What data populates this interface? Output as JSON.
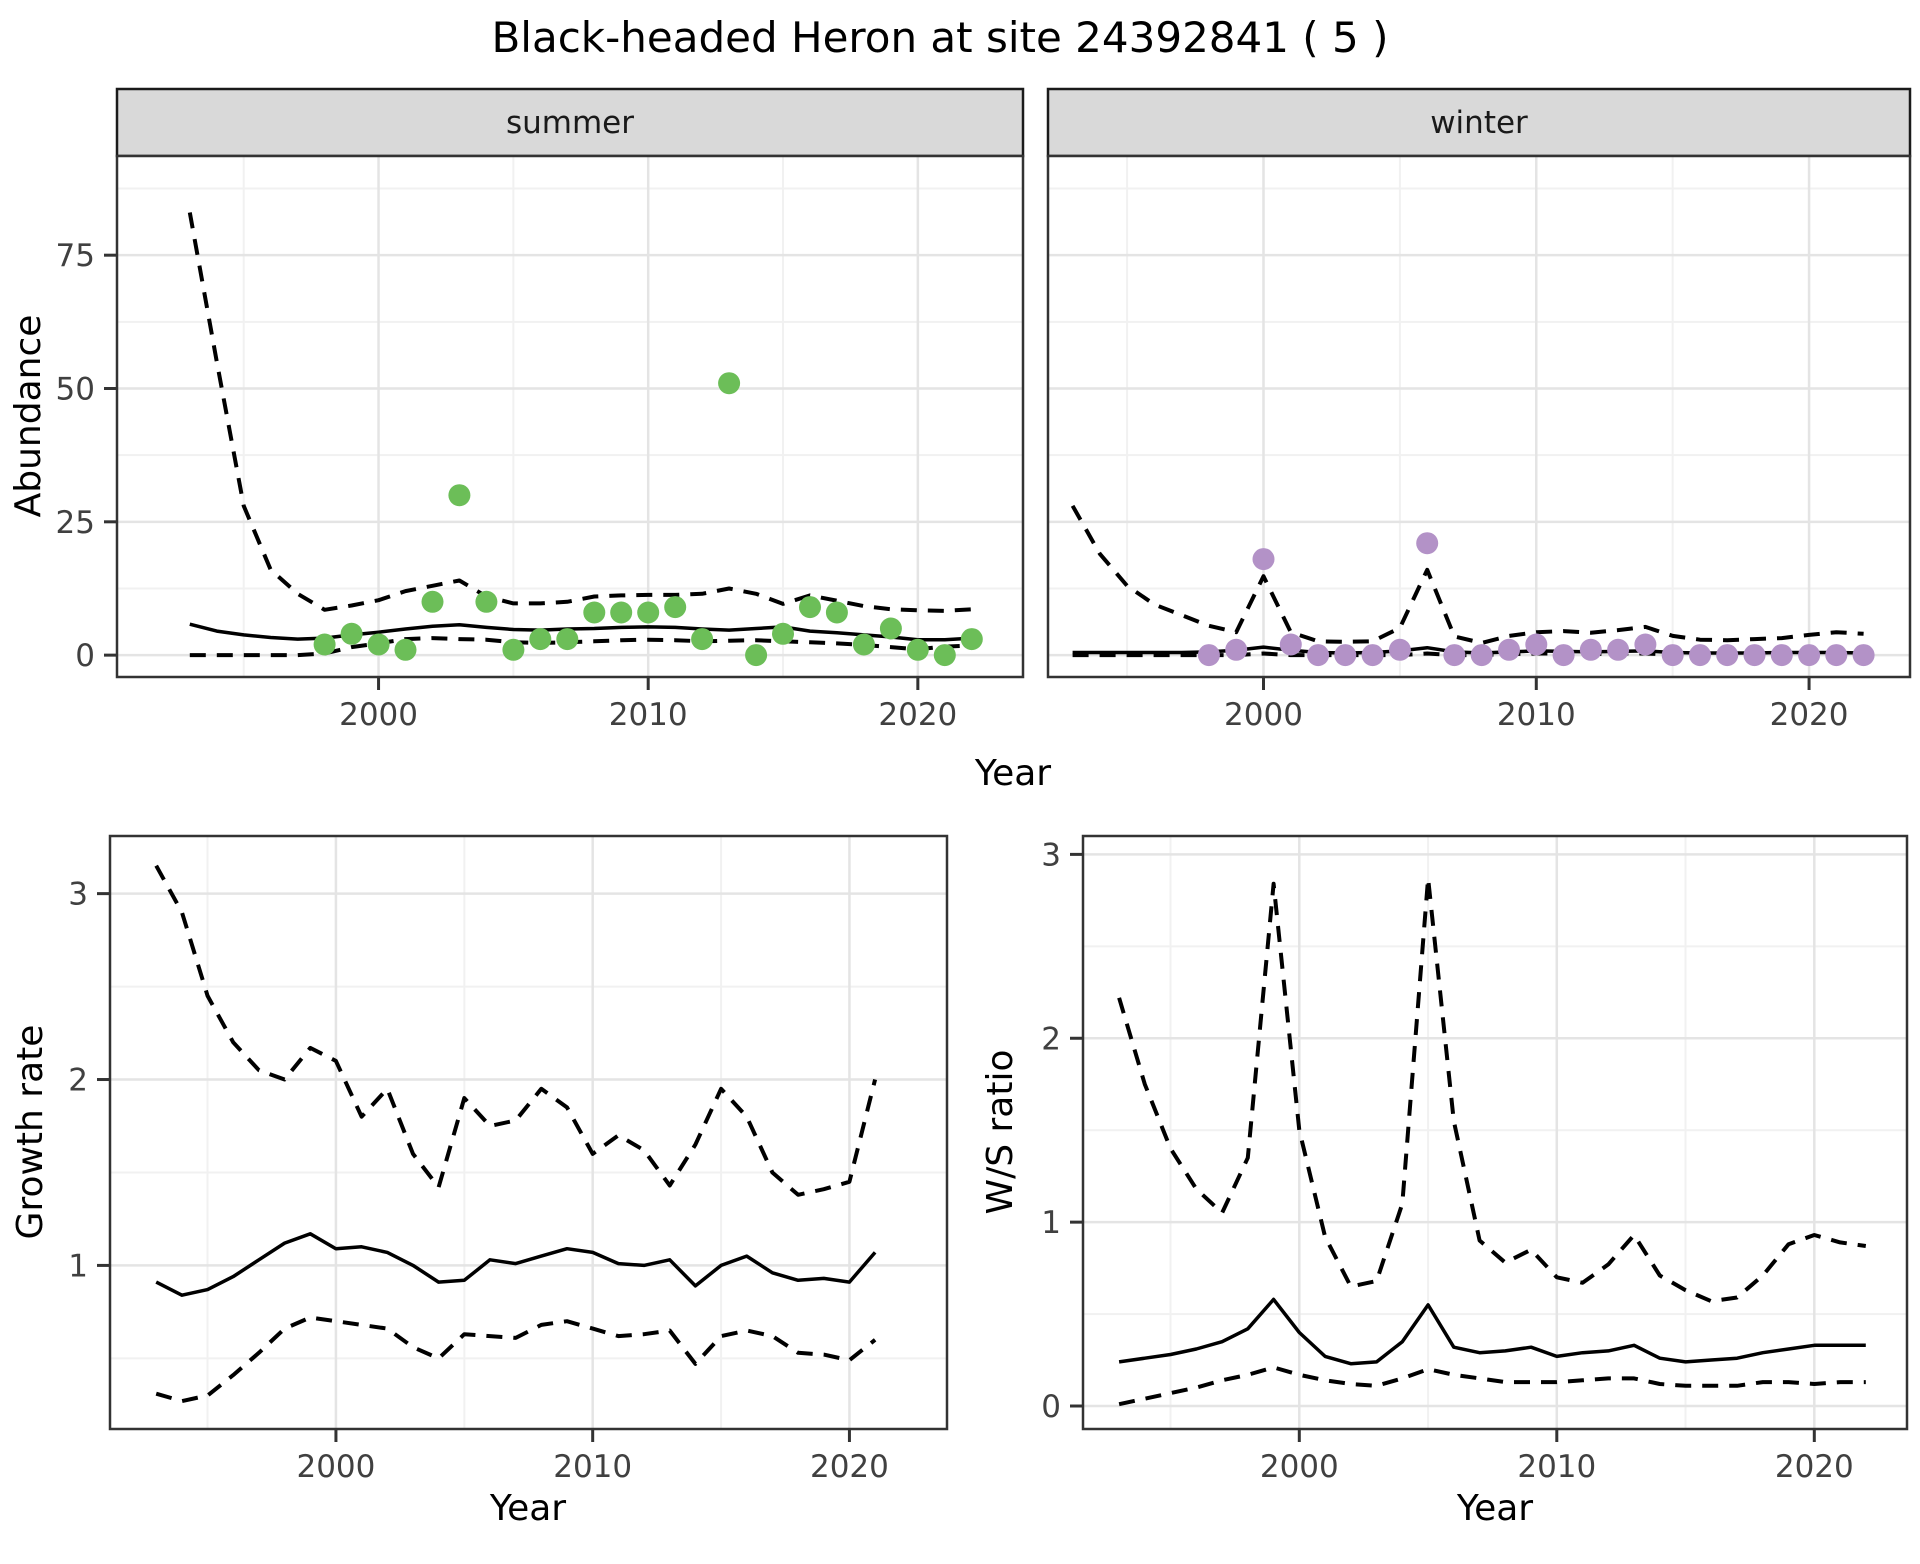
{
  "title": "Black-headed Heron at site 24392841 ( 5 )",
  "axis_labels": {
    "x": "Year",
    "y_abundance": "Abundance",
    "y_growth": "Growth rate",
    "y_ws": "W/S ratio"
  },
  "facets": {
    "summer": "summer",
    "winter": "winter"
  },
  "colors": {
    "summer_point": "#6cbe58",
    "winter_point": "#b392c7",
    "line": "#000000",
    "strip_bg": "#d9d9d9",
    "strip_border": "#1a1a1a",
    "panel_border": "#333333",
    "grid_major": "#e4e4e4",
    "grid_minor": "#f1f1f1",
    "tick_text": "#404040"
  },
  "chart_data": [
    {
      "id": "summer",
      "type": "line",
      "facet_label": "summer",
      "xlabel": "Year",
      "ylabel": "Abundance",
      "xlim": [
        1990.3,
        2023.9
      ],
      "ylim": [
        -4.1,
        93.6
      ],
      "xticks": {
        "values": [
          2000,
          2010,
          2020
        ],
        "labels": [
          "2000",
          "2010",
          "2020"
        ]
      },
      "yticks": {
        "values": [
          0,
          25,
          50,
          75
        ],
        "labels": [
          "0",
          "25",
          "50",
          "75"
        ]
      },
      "x_minor": [
        1995,
        2005,
        2015
      ],
      "y_minor": [
        12.5,
        37.5,
        62.5,
        87.5
      ],
      "series": [
        {
          "name": "upper_ci",
          "dashed": true,
          "x": [
            1993,
            1994,
            1995,
            1996,
            1997,
            1998,
            1999,
            2000,
            2001,
            2002,
            2003,
            2004,
            2005,
            2006,
            2007,
            2008,
            2009,
            2010,
            2011,
            2012,
            2013,
            2014,
            2015,
            2016,
            2017,
            2018,
            2019,
            2020,
            2021,
            2022
          ],
          "y": [
            83,
            55,
            28,
            16,
            11.5,
            8.5,
            9.3,
            10.3,
            12,
            13,
            14,
            11,
            9.7,
            9.7,
            10,
            11,
            11.2,
            11.3,
            11.3,
            11.5,
            12.5,
            11.5,
            9.6,
            11.2,
            10.2,
            9.2,
            8.6,
            8.4,
            8.3,
            8.6
          ]
        },
        {
          "name": "lower_ci",
          "dashed": true,
          "x": [
            1993,
            1994,
            1995,
            1996,
            1997,
            1998,
            1999,
            2000,
            2001,
            2002,
            2003,
            2004,
            2005,
            2006,
            2007,
            2008,
            2009,
            2010,
            2011,
            2012,
            2013,
            2014,
            2015,
            2016,
            2017,
            2018,
            2019,
            2020,
            2021,
            2022
          ],
          "y": [
            0,
            0,
            0,
            0,
            0,
            0.3,
            1.5,
            2.2,
            3.0,
            3.2,
            3.0,
            2.9,
            2.4,
            2.3,
            2.4,
            2.6,
            2.8,
            2.9,
            2.8,
            2.6,
            2.7,
            2.8,
            2.6,
            2.4,
            2.2,
            1.9,
            1.5,
            1.1,
            1.6,
            1.8
          ]
        },
        {
          "name": "median",
          "dashed": false,
          "x": [
            1993,
            1994,
            1995,
            1996,
            1997,
            1998,
            1999,
            2000,
            2001,
            2002,
            2003,
            2004,
            2005,
            2006,
            2007,
            2008,
            2009,
            2010,
            2011,
            2012,
            2013,
            2014,
            2015,
            2016,
            2017,
            2018,
            2019,
            2020,
            2021,
            2022
          ],
          "y": [
            5.8,
            4.5,
            3.8,
            3.3,
            3.0,
            3.2,
            3.8,
            4.3,
            4.9,
            5.4,
            5.7,
            5.2,
            4.8,
            4.7,
            4.9,
            5.0,
            5.2,
            5.3,
            5.2,
            4.9,
            4.7,
            5.0,
            5.3,
            4.5,
            4.2,
            3.8,
            3.4,
            2.9,
            2.9,
            3.2
          ]
        }
      ],
      "points": {
        "name": "summer-observations",
        "color": "#6cbe58",
        "x": [
          1998,
          1999,
          2000,
          2001,
          2002,
          2003,
          2004,
          2005,
          2006,
          2007,
          2008,
          2009,
          2010,
          2011,
          2012,
          2013,
          2014,
          2015,
          2016,
          2017,
          2018,
          2019,
          2020,
          2021,
          2022
        ],
        "y": [
          2,
          4,
          2,
          1,
          10,
          30,
          10,
          1,
          3,
          3,
          8,
          8,
          8,
          9,
          3,
          51,
          0,
          4,
          9,
          8,
          2,
          5,
          1,
          0,
          3
        ]
      }
    },
    {
      "id": "winter",
      "type": "line",
      "facet_label": "winter",
      "xlabel": "Year",
      "ylabel": "Abundance",
      "xlim": [
        1992.1,
        2023.7
      ],
      "ylim": [
        -4.1,
        93.6
      ],
      "xticks": {
        "values": [
          2000,
          2010,
          2020
        ],
        "labels": [
          "2000",
          "2010",
          "2020"
        ]
      },
      "yticks": {
        "values": [],
        "labels": []
      },
      "x_minor": [
        1995,
        2005,
        2015
      ],
      "y_minor": [
        12.5,
        37.5,
        62.5,
        87.5
      ],
      "y_major_grid": [
        0,
        25,
        50,
        75
      ],
      "series": [
        {
          "name": "upper_ci",
          "dashed": true,
          "x": [
            1993,
            1994,
            1995,
            1996,
            1997,
            1998,
            1999,
            2000,
            2001,
            2002,
            2003,
            2004,
            2005,
            2006,
            2007,
            2008,
            2009,
            2010,
            2011,
            2012,
            2013,
            2014,
            2015,
            2016,
            2017,
            2018,
            2019,
            2020,
            2021,
            2022
          ],
          "y": [
            28,
            19,
            13,
            9.5,
            7.5,
            5.5,
            4.3,
            14.8,
            4.3,
            2.6,
            2.5,
            2.6,
            5.1,
            16,
            3.5,
            2.3,
            3.6,
            4.3,
            4.5,
            4.2,
            4.7,
            5.3,
            3.6,
            2.9,
            2.8,
            3.0,
            3.2,
            3.8,
            4.3,
            4.0
          ]
        },
        {
          "name": "lower_ci",
          "dashed": true,
          "x": [
            1993,
            1994,
            1995,
            1996,
            1997,
            1998,
            1999,
            2000,
            2001,
            2002,
            2003,
            2004,
            2005,
            2006,
            2007,
            2008,
            2009,
            2010,
            2011,
            2012,
            2013,
            2014,
            2015,
            2016,
            2017,
            2018,
            2019,
            2020,
            2021,
            2022
          ],
          "y": [
            0,
            0,
            0,
            0,
            0,
            0,
            0,
            0.3,
            0,
            0,
            0,
            0,
            0,
            0.3,
            0,
            0,
            0.2,
            0.3,
            0.3,
            0.2,
            0.3,
            0.3,
            0.1,
            0,
            0,
            0,
            0,
            0.1,
            0.1,
            0.1
          ]
        },
        {
          "name": "median",
          "dashed": false,
          "x": [
            1993,
            1994,
            1995,
            1996,
            1997,
            1998,
            1999,
            2000,
            2001,
            2002,
            2003,
            2004,
            2005,
            2006,
            2007,
            2008,
            2009,
            2010,
            2011,
            2012,
            2013,
            2014,
            2015,
            2016,
            2017,
            2018,
            2019,
            2020,
            2021,
            2022
          ],
          "y": [
            0.5,
            0.5,
            0.5,
            0.5,
            0.5,
            0.6,
            0.9,
            1.5,
            0.9,
            0.5,
            0.4,
            0.5,
            0.8,
            1.4,
            0.6,
            0.4,
            0.6,
            0.8,
            0.7,
            0.6,
            0.7,
            0.8,
            0.5,
            0.4,
            0.4,
            0.4,
            0.5,
            0.5,
            0.5,
            0.4
          ]
        }
      ],
      "points": {
        "name": "winter-observations",
        "color": "#b392c7",
        "x": [
          1998,
          1999,
          2000,
          2001,
          2002,
          2003,
          2004,
          2005,
          2006,
          2007,
          2008,
          2009,
          2010,
          2011,
          2012,
          2013,
          2014,
          2015,
          2016,
          2017,
          2018,
          2019,
          2020,
          2021,
          2022
        ],
        "y": [
          0,
          1,
          18,
          2,
          0,
          0,
          0,
          1,
          21,
          0,
          0,
          1,
          2,
          0,
          1,
          1,
          2,
          0,
          0,
          0,
          0,
          0,
          0,
          0,
          0
        ]
      }
    },
    {
      "id": "growth",
      "type": "line",
      "facet_label": "",
      "xlabel": "Year",
      "ylabel": "Growth rate",
      "xlim": [
        1991.2,
        2023.8
      ],
      "ylim": [
        0.12,
        3.31
      ],
      "xticks": {
        "values": [
          2000,
          2010,
          2020
        ],
        "labels": [
          "2000",
          "2010",
          "2020"
        ]
      },
      "yticks": {
        "values": [
          1,
          2,
          3
        ],
        "labels": [
          "1",
          "2",
          "3"
        ]
      },
      "x_minor": [
        1995,
        2005,
        2015
      ],
      "y_minor": [
        0.5,
        1.5,
        2.5
      ],
      "series": [
        {
          "name": "upper_ci",
          "dashed": true,
          "x": [
            1993,
            1994,
            1995,
            1996,
            1997,
            1998,
            1999,
            2000,
            2001,
            2002,
            2003,
            2004,
            2005,
            2006,
            2007,
            2008,
            2009,
            2010,
            2011,
            2012,
            2013,
            2014,
            2015,
            2016,
            2017,
            2018,
            2019,
            2020,
            2021
          ],
          "y": [
            3.15,
            2.9,
            2.45,
            2.2,
            2.05,
            2.0,
            2.17,
            2.1,
            1.8,
            1.95,
            1.6,
            1.42,
            1.9,
            1.75,
            1.78,
            1.95,
            1.85,
            1.6,
            1.7,
            1.62,
            1.43,
            1.65,
            1.95,
            1.8,
            1.5,
            1.38,
            1.41,
            1.45,
            2.0
          ]
        },
        {
          "name": "lower_ci",
          "dashed": true,
          "x": [
            1993,
            1994,
            1995,
            1996,
            1997,
            1998,
            1999,
            2000,
            2001,
            2002,
            2003,
            2004,
            2005,
            2006,
            2007,
            2008,
            2009,
            2010,
            2011,
            2012,
            2013,
            2014,
            2015,
            2016,
            2017,
            2018,
            2019,
            2020,
            2021
          ],
          "y": [
            0.31,
            0.27,
            0.3,
            0.41,
            0.53,
            0.66,
            0.72,
            0.7,
            0.68,
            0.66,
            0.56,
            0.5,
            0.63,
            0.62,
            0.61,
            0.68,
            0.7,
            0.66,
            0.62,
            0.63,
            0.65,
            0.47,
            0.62,
            0.65,
            0.62,
            0.53,
            0.52,
            0.49,
            0.6
          ]
        },
        {
          "name": "median",
          "dashed": false,
          "x": [
            1993,
            1994,
            1995,
            1996,
            1997,
            1998,
            1999,
            2000,
            2001,
            2002,
            2003,
            2004,
            2005,
            2006,
            2007,
            2008,
            2009,
            2010,
            2011,
            2012,
            2013,
            2014,
            2015,
            2016,
            2017,
            2018,
            2019,
            2020,
            2021
          ],
          "y": [
            0.91,
            0.84,
            0.87,
            0.94,
            1.03,
            1.12,
            1.17,
            1.09,
            1.1,
            1.07,
            1.0,
            0.91,
            0.92,
            1.03,
            1.01,
            1.05,
            1.09,
            1.07,
            1.01,
            1.0,
            1.03,
            0.89,
            1.0,
            1.05,
            0.96,
            0.92,
            0.93,
            0.91,
            1.07
          ]
        }
      ],
      "points": null
    },
    {
      "id": "ws",
      "type": "line",
      "facet_label": "",
      "xlabel": "Year",
      "ylabel": "W/S ratio",
      "xlim": [
        1991.6,
        2023.6
      ],
      "ylim": [
        -0.125,
        3.1
      ],
      "xticks": {
        "values": [
          2000,
          2010,
          2020
        ],
        "labels": [
          "2000",
          "2010",
          "2020"
        ]
      },
      "yticks": {
        "values": [
          0,
          1,
          2,
          3
        ],
        "labels": [
          "0",
          "1",
          "2",
          "3"
        ]
      },
      "x_minor": [
        1995,
        2005,
        2015
      ],
      "y_minor": [
        0.5,
        1.5,
        2.5
      ],
      "series": [
        {
          "name": "upper_ci",
          "dashed": true,
          "x": [
            1993,
            1994,
            1995,
            1996,
            1997,
            1998,
            1999,
            2000,
            2001,
            2002,
            2003,
            2004,
            2005,
            2006,
            2007,
            2008,
            2009,
            2010,
            2011,
            2012,
            2013,
            2014,
            2015,
            2016,
            2017,
            2018,
            2019,
            2020,
            2021,
            2022
          ],
          "y": [
            2.22,
            1.75,
            1.4,
            1.18,
            1.05,
            1.35,
            2.84,
            1.5,
            0.92,
            0.65,
            0.68,
            1.1,
            2.87,
            1.55,
            0.9,
            0.78,
            0.85,
            0.7,
            0.67,
            0.77,
            0.93,
            0.71,
            0.63,
            0.57,
            0.59,
            0.71,
            0.88,
            0.93,
            0.89,
            0.87
          ]
        },
        {
          "name": "lower_ci",
          "dashed": true,
          "x": [
            1993,
            1994,
            1995,
            1996,
            1997,
            1998,
            1999,
            2000,
            2001,
            2002,
            2003,
            2004,
            2005,
            2006,
            2007,
            2008,
            2009,
            2010,
            2011,
            2012,
            2013,
            2014,
            2015,
            2016,
            2017,
            2018,
            2019,
            2020,
            2021,
            2022
          ],
          "y": [
            0.01,
            0.04,
            0.07,
            0.1,
            0.14,
            0.17,
            0.21,
            0.17,
            0.14,
            0.12,
            0.11,
            0.15,
            0.2,
            0.17,
            0.15,
            0.13,
            0.13,
            0.13,
            0.14,
            0.15,
            0.15,
            0.12,
            0.11,
            0.11,
            0.11,
            0.13,
            0.13,
            0.12,
            0.13,
            0.13
          ]
        },
        {
          "name": "median",
          "dashed": false,
          "x": [
            1993,
            1994,
            1995,
            1996,
            1997,
            1998,
            1999,
            2000,
            2001,
            2002,
            2003,
            2004,
            2005,
            2006,
            2007,
            2008,
            2009,
            2010,
            2011,
            2012,
            2013,
            2014,
            2015,
            2016,
            2017,
            2018,
            2019,
            2020,
            2021,
            2022
          ],
          "y": [
            0.24,
            0.26,
            0.28,
            0.31,
            0.35,
            0.42,
            0.58,
            0.4,
            0.27,
            0.23,
            0.24,
            0.35,
            0.55,
            0.32,
            0.29,
            0.3,
            0.32,
            0.27,
            0.29,
            0.3,
            0.33,
            0.26,
            0.24,
            0.25,
            0.26,
            0.29,
            0.31,
            0.33,
            0.33,
            0.33
          ]
        }
      ],
      "points": null
    }
  ]
}
